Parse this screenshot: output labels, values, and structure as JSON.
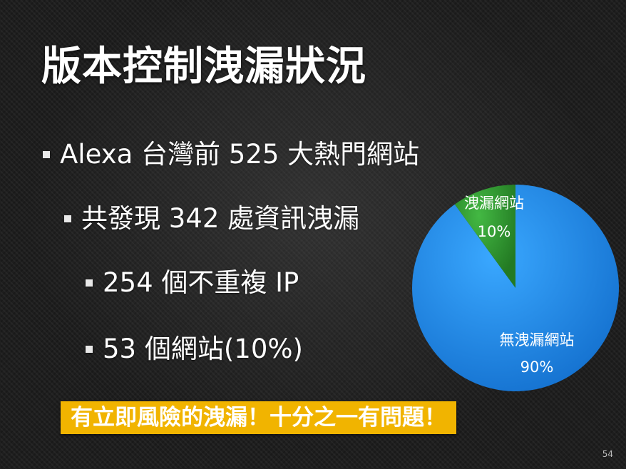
{
  "slide": {
    "title": "版本控制洩漏狀況",
    "bullets": [
      {
        "level": 1,
        "text": "Alexa 台灣前 525 大熱門網站"
      },
      {
        "level": 2,
        "text": "共發現 342 處資訊洩漏"
      },
      {
        "level": 3,
        "text": "254 個不重複 IP"
      },
      {
        "level": 3,
        "text": "53 個網站(10%)"
      }
    ],
    "highlight": "有立即風險的洩漏！十分之一有問題！",
    "page_number": "54"
  },
  "colors": {
    "highlight_bg": "#f1b400",
    "leak_slice": "#2f9e2f",
    "no_leak_slice": "#1f8ff0"
  },
  "chart_data": {
    "type": "pie",
    "title": "",
    "start_angle_deg": 0,
    "slices": [
      {
        "label": "洩漏網站",
        "value": 10,
        "display": "10%",
        "color": "#2f9e2f"
      },
      {
        "label": "無洩漏網站",
        "value": 90,
        "display": "90%",
        "color": "#1f8ff0"
      }
    ]
  }
}
